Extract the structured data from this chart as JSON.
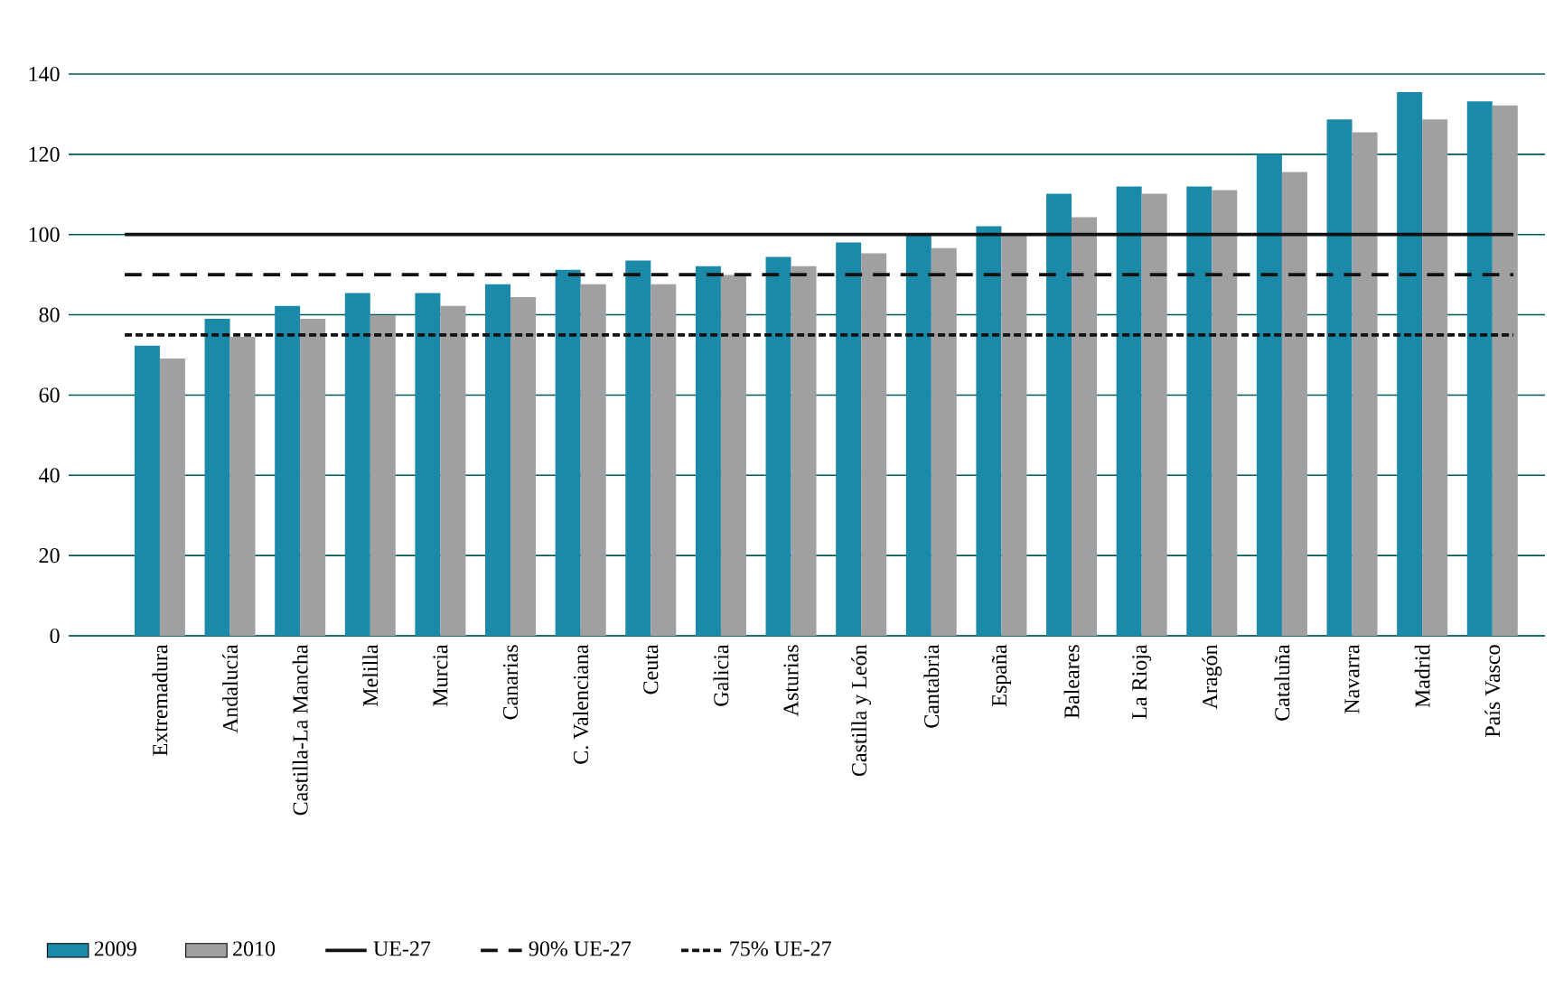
{
  "chart_data": {
    "type": "bar",
    "categories": [
      "Extremadura",
      "Andalucía",
      "Castilla-La Mancha",
      "Melilla",
      "Murcia",
      "Canarias",
      "C. Valenciana",
      "Ceuta",
      "Galicia",
      "Asturias",
      "Castilla y León",
      "Cantabria",
      "España",
      "Baleares",
      "La Rioja",
      "Aragón",
      "Cataluña",
      "Navarra",
      "Madrid",
      "País Vasco"
    ],
    "series": [
      {
        "name": "2009",
        "color": "#1a8aa8",
        "values": [
          72.3,
          79,
          82.2,
          85.4,
          85.4,
          87.6,
          91.2,
          93.5,
          92.1,
          94.4,
          98,
          99.8,
          102.1,
          110.2,
          112,
          112,
          120,
          128.7,
          135.5,
          133.2
        ]
      },
      {
        "name": "2010",
        "color": "#a0a0a2",
        "values": [
          69.1,
          74.5,
          79,
          79.9,
          82.2,
          84.4,
          87.6,
          87.6,
          89.9,
          92.1,
          95.3,
          96.6,
          100,
          104.3,
          110.2,
          111.1,
          115.6,
          125.5,
          128.7,
          132.2
        ]
      }
    ],
    "ylim": [
      0,
      140
    ],
    "yticks": [
      0,
      20,
      40,
      60,
      80,
      100,
      120,
      140
    ],
    "grid": "y",
    "legend": "bottom",
    "ref_lines": [
      {
        "axis": "y",
        "value": 100,
        "label": "UE-27",
        "color": "#111111",
        "line_style": "solid"
      },
      {
        "axis": "y",
        "value": 90,
        "label": "90% UE-27",
        "color": "#111111",
        "line_style": "dashed"
      },
      {
        "axis": "y",
        "value": 75,
        "label": "75% UE-27",
        "color": "#111111",
        "line_style": "dotted"
      }
    ]
  }
}
